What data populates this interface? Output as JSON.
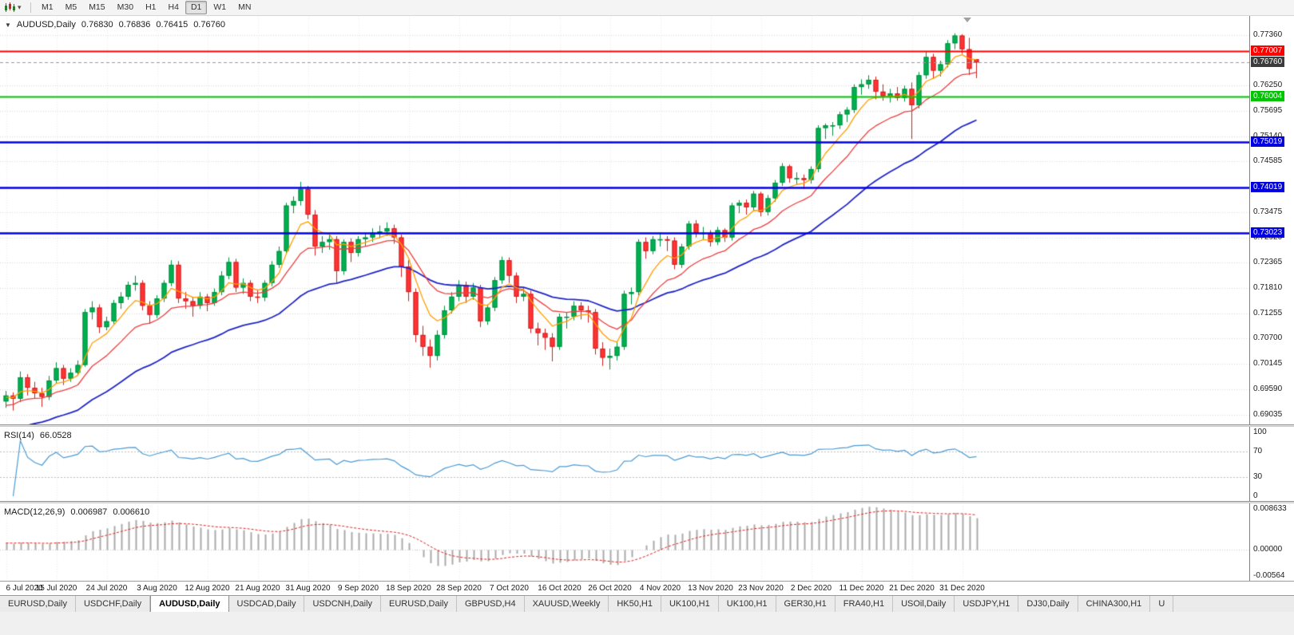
{
  "toolbar": {
    "dropdown_glyph": "▾",
    "timeframes": [
      {
        "label": "M1",
        "active": false
      },
      {
        "label": "M5",
        "active": false
      },
      {
        "label": "M15",
        "active": false
      },
      {
        "label": "M30",
        "active": false
      },
      {
        "label": "H1",
        "active": false
      },
      {
        "label": "H4",
        "active": false
      },
      {
        "label": "D1",
        "active": true
      },
      {
        "label": "W1",
        "active": false
      },
      {
        "label": "MN",
        "active": false
      }
    ]
  },
  "chart_header": {
    "collapse_glyph": "▼",
    "symbol": "AUDUSD,Daily",
    "open": "0.76830",
    "high": "0.76836",
    "low": "0.76415",
    "close": "0.76760"
  },
  "indicators": {
    "rsi": {
      "label": "RSI(14)",
      "value": "66.0528"
    },
    "macd": {
      "label": "MACD(12,26,9)",
      "value_main": "0.006987",
      "value_signal": "0.006610"
    }
  },
  "tabs": {
    "items": [
      {
        "label": "EURUSD,Daily",
        "active": false
      },
      {
        "label": "USDCHF,Daily",
        "active": false
      },
      {
        "label": "AUDUSD,Daily",
        "active": true
      },
      {
        "label": "USDCAD,Daily",
        "active": false
      },
      {
        "label": "USDCNH,Daily",
        "active": false
      },
      {
        "label": "EURUSD,Daily",
        "active": false
      },
      {
        "label": "GBPUSD,H4",
        "active": false
      },
      {
        "label": "XAUUSD,Weekly",
        "active": false
      },
      {
        "label": "HK50,H1",
        "active": false
      },
      {
        "label": "UK100,H1",
        "active": false
      },
      {
        "label": "UK100,H1",
        "active": false
      },
      {
        "label": "GER30,H1",
        "active": false
      },
      {
        "label": "FRA40,H1",
        "active": false
      },
      {
        "label": "USOil,Daily",
        "active": false
      },
      {
        "label": "USDJPY,H1",
        "active": false
      },
      {
        "label": "DJ30,Daily",
        "active": false
      },
      {
        "label": "CHINA300,H1",
        "active": false
      },
      {
        "label": "U",
        "active": false
      }
    ]
  },
  "chart_data": {
    "type": "candlestick",
    "title": "AUDUSD,Daily",
    "symbol": "AUDUSD",
    "timeframe": "Daily",
    "current_price": 0.7676,
    "y_range": {
      "top": 0.7736,
      "bottom": 0.69035
    },
    "y_ticks": [
      "0.77360",
      "0.76250",
      "0.75695",
      "0.75140",
      "0.74585",
      "0.73475",
      "0.72920",
      "0.72365",
      "0.71810",
      "0.71255",
      "0.70700",
      "0.70145",
      "0.69590",
      "0.69035"
    ],
    "x_labels": [
      "6 Jul 2020",
      "15 Jul 2020",
      "24 Jul 2020",
      "3 Aug 2020",
      "12 Aug 2020",
      "21 Aug 2020",
      "31 Aug 2020",
      "9 Sep 2020",
      "18 Sep 2020",
      "28 Sep 2020",
      "7 Oct 2020",
      "16 Oct 2020",
      "26 Oct 2020",
      "4 Nov 2020",
      "13 Nov 2020",
      "23 Nov 2020",
      "2 Dec 2020",
      "11 Dec 2020",
      "21 Dec 2020",
      "31 Dec 2020"
    ],
    "label_indices": [
      0,
      7,
      14,
      21,
      28,
      35,
      42,
      49,
      56,
      63,
      70,
      77,
      84,
      91,
      98,
      105,
      112,
      119,
      126,
      133
    ],
    "levels": [
      {
        "label": "0.77007",
        "price": 0.77007,
        "color": "#ff0000",
        "width": 2,
        "type": "resistance"
      },
      {
        "label": "0.76004",
        "price": 0.76004,
        "color": "#00c400",
        "width": 2,
        "type": "support"
      },
      {
        "label": "0.75019",
        "price": 0.75019,
        "color": "#0000e0",
        "width": 2.5,
        "type": "support"
      },
      {
        "label": "0.74019",
        "price": 0.74019,
        "color": "#0000e0",
        "width": 2.5,
        "type": "support"
      },
      {
        "label": "0.73023",
        "price": 0.73023,
        "color": "#0000e0",
        "width": 2.5,
        "type": "support"
      }
    ],
    "moving_averages": [
      {
        "period": 36,
        "color": "#2026c8",
        "width": 1.8,
        "seed": 0.686
      },
      {
        "period": 14,
        "color": "#ef3e3e",
        "width": 1.3,
        "seed": 0.692
      },
      {
        "period": 6,
        "color": "#ff9e00",
        "width": 1.3,
        "seed": 0.694
      }
    ],
    "rsi": {
      "period": 14,
      "last": 66.0528,
      "levels": [
        70,
        30
      ],
      "range": [
        0,
        100
      ],
      "ticks": [
        "100",
        "70",
        "30",
        "0"
      ],
      "color": "#4a9bd4"
    },
    "macd": {
      "fast": 12,
      "slow": 26,
      "signal": 9,
      "last": 0.006987,
      "last_signal": 0.00661,
      "range": [
        -0.00564,
        0.008633
      ],
      "ticks": [
        "0.008633",
        "0.00000",
        "-0.00564"
      ],
      "seed_fast": 0.6945,
      "seed_slow": 0.693,
      "hist_color": "#ababab",
      "signal_color": "#e02020"
    },
    "colors": {
      "bg": "#ffffff",
      "grid": "#d9d9d9",
      "grid_v": "#ededed",
      "up": "#00b050",
      "up_border": "#009040",
      "down": "#ff3333",
      "down_border": "#d02020",
      "current_label_bg": "#3c3c3c"
    },
    "candles": [
      [
        0.6932,
        0.6955,
        0.6918,
        0.6945
      ],
      [
        0.6945,
        0.6952,
        0.6912,
        0.6938
      ],
      [
        0.6938,
        0.6998,
        0.693,
        0.6985
      ],
      [
        0.6985,
        0.6992,
        0.6945,
        0.6962
      ],
      [
        0.6962,
        0.6975,
        0.6938,
        0.695
      ],
      [
        0.695,
        0.6962,
        0.692,
        0.6942
      ],
      [
        0.6942,
        0.6988,
        0.6935,
        0.6978
      ],
      [
        0.6978,
        0.7018,
        0.6972,
        0.7005
      ],
      [
        0.7005,
        0.7012,
        0.6968,
        0.6982
      ],
      [
        0.6982,
        0.7005,
        0.6975,
        0.6995
      ],
      [
        0.6995,
        0.7022,
        0.6988,
        0.7012
      ],
      [
        0.7012,
        0.7135,
        0.7008,
        0.7128
      ],
      [
        0.7128,
        0.7152,
        0.7112,
        0.7138
      ],
      [
        0.7138,
        0.7145,
        0.7082,
        0.7095
      ],
      [
        0.7095,
        0.7118,
        0.7088,
        0.7108
      ],
      [
        0.7108,
        0.7155,
        0.7102,
        0.7148
      ],
      [
        0.7148,
        0.7172,
        0.7135,
        0.7162
      ],
      [
        0.7162,
        0.7195,
        0.7155,
        0.7188
      ],
      [
        0.7188,
        0.7208,
        0.7175,
        0.7192
      ],
      [
        0.7192,
        0.7198,
        0.7132,
        0.7142
      ],
      [
        0.7142,
        0.7152,
        0.7102,
        0.7122
      ],
      [
        0.7122,
        0.7165,
        0.7115,
        0.7158
      ],
      [
        0.7158,
        0.7198,
        0.715,
        0.7192
      ],
      [
        0.7192,
        0.7242,
        0.7185,
        0.7232
      ],
      [
        0.7232,
        0.724,
        0.7148,
        0.7158
      ],
      [
        0.7158,
        0.7172,
        0.7135,
        0.7152
      ],
      [
        0.7152,
        0.7162,
        0.7118,
        0.7142
      ],
      [
        0.7142,
        0.7172,
        0.7135,
        0.7162
      ],
      [
        0.7162,
        0.7168,
        0.713,
        0.7148
      ],
      [
        0.7148,
        0.718,
        0.7142,
        0.7172
      ],
      [
        0.7172,
        0.7218,
        0.7165,
        0.7208
      ],
      [
        0.7208,
        0.7248,
        0.72,
        0.7238
      ],
      [
        0.7238,
        0.7245,
        0.7172,
        0.7182
      ],
      [
        0.7182,
        0.7202,
        0.7168,
        0.7192
      ],
      [
        0.7192,
        0.7198,
        0.7152,
        0.7162
      ],
      [
        0.7162,
        0.7178,
        0.7148,
        0.716
      ],
      [
        0.716,
        0.7198,
        0.7152,
        0.7192
      ],
      [
        0.7192,
        0.724,
        0.7185,
        0.7232
      ],
      [
        0.7232,
        0.7272,
        0.7225,
        0.7262
      ],
      [
        0.7262,
        0.7368,
        0.7255,
        0.7362
      ],
      [
        0.7362,
        0.7382,
        0.7345,
        0.7372
      ],
      [
        0.7372,
        0.7414,
        0.7362,
        0.7398
      ],
      [
        0.7398,
        0.7405,
        0.7332,
        0.7342
      ],
      [
        0.7342,
        0.7352,
        0.7252,
        0.7272
      ],
      [
        0.7272,
        0.7295,
        0.7258,
        0.7282
      ],
      [
        0.7282,
        0.7298,
        0.7265,
        0.7288
      ],
      [
        0.7288,
        0.7295,
        0.7192,
        0.7218
      ],
      [
        0.7218,
        0.7288,
        0.721,
        0.7282
      ],
      [
        0.7282,
        0.729,
        0.7238,
        0.7258
      ],
      [
        0.7258,
        0.7295,
        0.725,
        0.7288
      ],
      [
        0.7288,
        0.7302,
        0.7272,
        0.7292
      ],
      [
        0.7292,
        0.7312,
        0.7282,
        0.7302
      ],
      [
        0.7302,
        0.7318,
        0.729,
        0.7305
      ],
      [
        0.7305,
        0.7325,
        0.7295,
        0.7312
      ],
      [
        0.7312,
        0.732,
        0.7278,
        0.7292
      ],
      [
        0.7292,
        0.7298,
        0.7205,
        0.7228
      ],
      [
        0.7228,
        0.7242,
        0.7152,
        0.7172
      ],
      [
        0.7172,
        0.718,
        0.7062,
        0.7078
      ],
      [
        0.7078,
        0.7098,
        0.7032,
        0.7052
      ],
      [
        0.7052,
        0.7068,
        0.7006,
        0.7032
      ],
      [
        0.7032,
        0.7088,
        0.7022,
        0.7078
      ],
      [
        0.7078,
        0.7142,
        0.707,
        0.7132
      ],
      [
        0.7132,
        0.7172,
        0.7125,
        0.7162
      ],
      [
        0.7162,
        0.7198,
        0.7152,
        0.7188
      ],
      [
        0.7188,
        0.7195,
        0.7148,
        0.7162
      ],
      [
        0.7162,
        0.7192,
        0.7155,
        0.7182
      ],
      [
        0.7182,
        0.7188,
        0.7095,
        0.7108
      ],
      [
        0.7108,
        0.7145,
        0.71,
        0.7138
      ],
      [
        0.7138,
        0.7205,
        0.713,
        0.7198
      ],
      [
        0.7198,
        0.725,
        0.719,
        0.7242
      ],
      [
        0.7242,
        0.7248,
        0.7192,
        0.7208
      ],
      [
        0.7208,
        0.7215,
        0.7148,
        0.7162
      ],
      [
        0.7162,
        0.7182,
        0.7152,
        0.7168
      ],
      [
        0.7168,
        0.7175,
        0.7082,
        0.7092
      ],
      [
        0.7092,
        0.7105,
        0.7055,
        0.7082
      ],
      [
        0.7082,
        0.7092,
        0.7045,
        0.7072
      ],
      [
        0.7072,
        0.7082,
        0.702,
        0.7052
      ],
      [
        0.7052,
        0.7125,
        0.7045,
        0.7118
      ],
      [
        0.7118,
        0.7128,
        0.7092,
        0.7118
      ],
      [
        0.7118,
        0.7152,
        0.711,
        0.7142
      ],
      [
        0.7142,
        0.715,
        0.7112,
        0.7132
      ],
      [
        0.7132,
        0.7142,
        0.7105,
        0.7128
      ],
      [
        0.7128,
        0.7135,
        0.7035,
        0.7048
      ],
      [
        0.7048,
        0.7062,
        0.701,
        0.7028
      ],
      [
        0.7028,
        0.7048,
        0.7002,
        0.7032
      ],
      [
        0.7032,
        0.7062,
        0.7022,
        0.7052
      ],
      [
        0.7052,
        0.7175,
        0.7045,
        0.7168
      ],
      [
        0.7168,
        0.7182,
        0.7145,
        0.7172
      ],
      [
        0.7172,
        0.7288,
        0.7165,
        0.7282
      ],
      [
        0.7282,
        0.7292,
        0.7245,
        0.7262
      ],
      [
        0.7262,
        0.7295,
        0.7255,
        0.7288
      ],
      [
        0.7288,
        0.7302,
        0.7272,
        0.7288
      ],
      [
        0.7288,
        0.7295,
        0.7262,
        0.7285
      ],
      [
        0.7285,
        0.7292,
        0.7222,
        0.7232
      ],
      [
        0.7232,
        0.7278,
        0.7225,
        0.7272
      ],
      [
        0.7272,
        0.7328,
        0.7265,
        0.7322
      ],
      [
        0.7322,
        0.733,
        0.7292,
        0.7302
      ],
      [
        0.7302,
        0.7315,
        0.7288,
        0.7302
      ],
      [
        0.7302,
        0.7308,
        0.7272,
        0.7282
      ],
      [
        0.7282,
        0.7315,
        0.7275,
        0.7308
      ],
      [
        0.7308,
        0.7312,
        0.7282,
        0.7292
      ],
      [
        0.7292,
        0.7368,
        0.7285,
        0.7362
      ],
      [
        0.7362,
        0.7374,
        0.7345,
        0.7368
      ],
      [
        0.7368,
        0.7375,
        0.7342,
        0.7358
      ],
      [
        0.7358,
        0.7394,
        0.735,
        0.7388
      ],
      [
        0.7388,
        0.7392,
        0.7338,
        0.7348
      ],
      [
        0.7348,
        0.7385,
        0.734,
        0.7378
      ],
      [
        0.7378,
        0.7418,
        0.737,
        0.7412
      ],
      [
        0.7412,
        0.7455,
        0.7405,
        0.7448
      ],
      [
        0.7448,
        0.7452,
        0.7412,
        0.7422
      ],
      [
        0.7422,
        0.7435,
        0.7408,
        0.7422
      ],
      [
        0.7422,
        0.743,
        0.7398,
        0.7418
      ],
      [
        0.7418,
        0.7448,
        0.741,
        0.7442
      ],
      [
        0.7442,
        0.7538,
        0.7435,
        0.7532
      ],
      [
        0.7532,
        0.7542,
        0.7508,
        0.7538
      ],
      [
        0.7538,
        0.7545,
        0.7515,
        0.7538
      ],
      [
        0.7538,
        0.7568,
        0.753,
        0.7562
      ],
      [
        0.7562,
        0.7578,
        0.7545,
        0.7572
      ],
      [
        0.7572,
        0.7628,
        0.7565,
        0.7622
      ],
      [
        0.7622,
        0.7639,
        0.7605,
        0.7628
      ],
      [
        0.7628,
        0.7648,
        0.7618,
        0.7638
      ],
      [
        0.7638,
        0.7645,
        0.7595,
        0.7612
      ],
      [
        0.7612,
        0.7628,
        0.7592,
        0.7602
      ],
      [
        0.7602,
        0.7618,
        0.7588,
        0.7608
      ],
      [
        0.7608,
        0.7622,
        0.7592,
        0.7598
      ],
      [
        0.7598,
        0.7625,
        0.759,
        0.7618
      ],
      [
        0.7618,
        0.7632,
        0.7508,
        0.7582
      ],
      [
        0.7582,
        0.7655,
        0.7575,
        0.7648
      ],
      [
        0.7648,
        0.77,
        0.764,
        0.7688
      ],
      [
        0.7688,
        0.7695,
        0.764,
        0.7658
      ],
      [
        0.7658,
        0.768,
        0.7645,
        0.7672
      ],
      [
        0.7672,
        0.7725,
        0.7665,
        0.7718
      ],
      [
        0.7718,
        0.774,
        0.7705,
        0.7735
      ],
      [
        0.7735,
        0.7738,
        0.7695,
        0.7705
      ],
      [
        0.7705,
        0.773,
        0.7648,
        0.7662
      ],
      [
        0.7683,
        0.76836,
        0.76415,
        0.7676
      ]
    ]
  }
}
